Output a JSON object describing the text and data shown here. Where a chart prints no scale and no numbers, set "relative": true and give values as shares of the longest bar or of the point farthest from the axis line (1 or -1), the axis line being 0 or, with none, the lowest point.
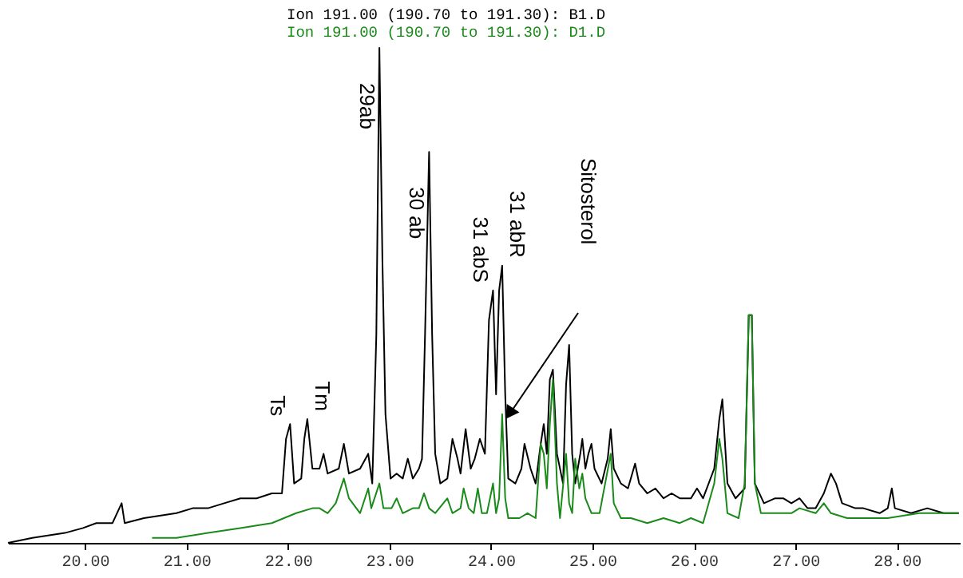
{
  "chart_data": {
    "type": "line",
    "relative": true,
    "xlim": [
      19.24,
      28.62
    ],
    "xticks": [
      {
        "value": 20,
        "label": "20.00"
      },
      {
        "value": 21,
        "label": "21.00"
      },
      {
        "value": 22,
        "label": "22.00"
      },
      {
        "value": 23,
        "label": "23.00"
      },
      {
        "value": 24,
        "label": "24.00"
      },
      {
        "value": 25,
        "label": "25.00"
      },
      {
        "value": 26,
        "label": "26.00"
      },
      {
        "value": 27,
        "label": "27.00"
      },
      {
        "value": 28,
        "label": "28.00"
      }
    ],
    "grid": false,
    "legend": "top",
    "marker": "none",
    "line_style": "solid",
    "series": [
      {
        "name": "Ion 191.00 (190.70 to 191.30): B1.D",
        "color": "#000000",
        "x": [
          19.24,
          19.48,
          19.8,
          19.98,
          20.11,
          20.27,
          20.36,
          20.39,
          20.58,
          20.9,
          21.06,
          21.21,
          21.37,
          21.53,
          21.69,
          21.84,
          21.94,
          21.98,
          22.02,
          22.06,
          22.13,
          22.16,
          22.19,
          22.24,
          22.31,
          22.35,
          22.39,
          22.5,
          22.55,
          22.6,
          22.71,
          22.79,
          22.83,
          22.87,
          22.9,
          22.93,
          22.96,
          23.01,
          23.07,
          23.13,
          23.18,
          23.23,
          23.29,
          23.32,
          23.35,
          23.39,
          23.42,
          23.45,
          23.5,
          23.57,
          23.62,
          23.67,
          23.7,
          23.75,
          23.8,
          23.84,
          23.89,
          23.94,
          23.98,
          24.02,
          24.05,
          24.08,
          24.11,
          24.14,
          24.17,
          24.24,
          24.3,
          24.33,
          24.39,
          24.44,
          24.49,
          24.52,
          24.55,
          24.58,
          24.61,
          24.65,
          24.71,
          24.74,
          24.77,
          24.8,
          24.83,
          24.88,
          24.9,
          24.93,
          24.96,
          24.99,
          25.02,
          25.09,
          25.15,
          25.18,
          25.21,
          25.28,
          25.35,
          25.42,
          25.46,
          25.54,
          25.62,
          25.7,
          25.78,
          25.86,
          25.97,
          26.03,
          26.09,
          26.2,
          26.25,
          26.28,
          26.33,
          26.41,
          26.5,
          26.54,
          26.57,
          26.6,
          26.69,
          26.8,
          26.88,
          26.96,
          27.04,
          27.12,
          27.2,
          27.28,
          27.35,
          27.4,
          27.46,
          27.59,
          27.67,
          27.83,
          27.91,
          27.95,
          27.98,
          28.14,
          28.3,
          28.46,
          28.61
        ],
        "values": [
          0.0,
          0.01,
          0.02,
          0.03,
          0.04,
          0.04,
          0.08,
          0.04,
          0.05,
          0.06,
          0.07,
          0.07,
          0.08,
          0.09,
          0.09,
          0.1,
          0.1,
          0.21,
          0.24,
          0.12,
          0.13,
          0.21,
          0.25,
          0.15,
          0.15,
          0.18,
          0.14,
          0.15,
          0.2,
          0.14,
          0.15,
          0.18,
          0.12,
          0.42,
          1,
          0.57,
          0.26,
          0.13,
          0.14,
          0.13,
          0.17,
          0.13,
          0.15,
          0.17,
          0.42,
          0.79,
          0.42,
          0.18,
          0.12,
          0.13,
          0.21,
          0.17,
          0.14,
          0.23,
          0.15,
          0.17,
          0.21,
          0.18,
          0.45,
          0.51,
          0.3,
          0.51,
          0.56,
          0.3,
          0.13,
          0.12,
          0.15,
          0.2,
          0.15,
          0.12,
          0.2,
          0.24,
          0.18,
          0.33,
          0.35,
          0.18,
          0.12,
          0.32,
          0.4,
          0.18,
          0.12,
          0.18,
          0.21,
          0.15,
          0.18,
          0.2,
          0.15,
          0.12,
          0.17,
          0.23,
          0.15,
          0.12,
          0.11,
          0.16,
          0.12,
          0.1,
          0.11,
          0.09,
          0.1,
          0.09,
          0.09,
          0.11,
          0.09,
          0.15,
          0.25,
          0.29,
          0.12,
          0.09,
          0.11,
          0.46,
          0.46,
          0.12,
          0.08,
          0.09,
          0.09,
          0.08,
          0.09,
          0.07,
          0.07,
          0.1,
          0.14,
          0.12,
          0.08,
          0.07,
          0.07,
          0.06,
          0.07,
          0.11,
          0.07,
          0.06,
          0.07,
          0.06,
          0.06
        ]
      },
      {
        "name": "Ion 191.00 (190.70 to 191.30): D1.D",
        "color": "#1a8a1a",
        "x": [
          20.66,
          20.9,
          21.21,
          21.53,
          21.84,
          22.08,
          22.24,
          22.31,
          22.39,
          22.47,
          22.55,
          22.6,
          22.71,
          22.79,
          22.82,
          22.9,
          22.94,
          23.02,
          23.07,
          23.13,
          23.23,
          23.29,
          23.34,
          23.39,
          23.45,
          23.57,
          23.62,
          23.7,
          23.73,
          23.78,
          23.83,
          23.87,
          23.91,
          23.96,
          24.02,
          24.05,
          24.08,
          24.11,
          24.14,
          24.17,
          24.28,
          24.36,
          24.44,
          24.49,
          24.52,
          24.55,
          24.58,
          24.61,
          24.65,
          24.68,
          24.74,
          24.77,
          24.8,
          24.83,
          24.87,
          24.9,
          24.93,
          24.99,
          25.07,
          25.18,
          25.21,
          25.28,
          25.38,
          25.54,
          25.7,
          25.86,
          25.97,
          26.09,
          26.2,
          26.25,
          26.28,
          26.33,
          26.44,
          26.5,
          26.54,
          26.57,
          26.6,
          26.66,
          26.8,
          26.96,
          27.04,
          27.2,
          27.28,
          27.35,
          27.51,
          27.75,
          27.91,
          28.22,
          28.46,
          28.61
        ],
        "values": [
          0.01,
          0.01,
          0.02,
          0.03,
          0.04,
          0.06,
          0.07,
          0.07,
          0.06,
          0.08,
          0.13,
          0.09,
          0.06,
          0.11,
          0.07,
          0.12,
          0.07,
          0.07,
          0.09,
          0.06,
          0.07,
          0.07,
          0.1,
          0.07,
          0.06,
          0.09,
          0.06,
          0.07,
          0.11,
          0.07,
          0.06,
          0.11,
          0.06,
          0.06,
          0.12,
          0.06,
          0.09,
          0.26,
          0.09,
          0.05,
          0.05,
          0.06,
          0.05,
          0.2,
          0.18,
          0.11,
          0.24,
          0.33,
          0.12,
          0.05,
          0.18,
          0.08,
          0.06,
          0.17,
          0.11,
          0.14,
          0.09,
          0.06,
          0.06,
          0.18,
          0.08,
          0.05,
          0.05,
          0.04,
          0.05,
          0.04,
          0.05,
          0.04,
          0.12,
          0.21,
          0.17,
          0.06,
          0.05,
          0.12,
          0.46,
          0.46,
          0.12,
          0.06,
          0.06,
          0.06,
          0.07,
          0.06,
          0.08,
          0.06,
          0.05,
          0.05,
          0.05,
          0.06,
          0.06,
          0.06
        ]
      }
    ],
    "annotations": [
      {
        "text": "Ts",
        "x": 22.02,
        "y": 0.24
      },
      {
        "text": "Tm",
        "x": 22.19,
        "y": 0.25
      },
      {
        "text": "29ab",
        "x": 22.9,
        "y": 1
      },
      {
        "text": "30 ab",
        "x": 23.39,
        "y": 0.79
      },
      {
        "text": "31 abS",
        "x": 24.02,
        "y": 0.51
      },
      {
        "text": "31 abR",
        "x": 24.11,
        "y": 0.56
      },
      "Sitosterol"
    ]
  }
}
